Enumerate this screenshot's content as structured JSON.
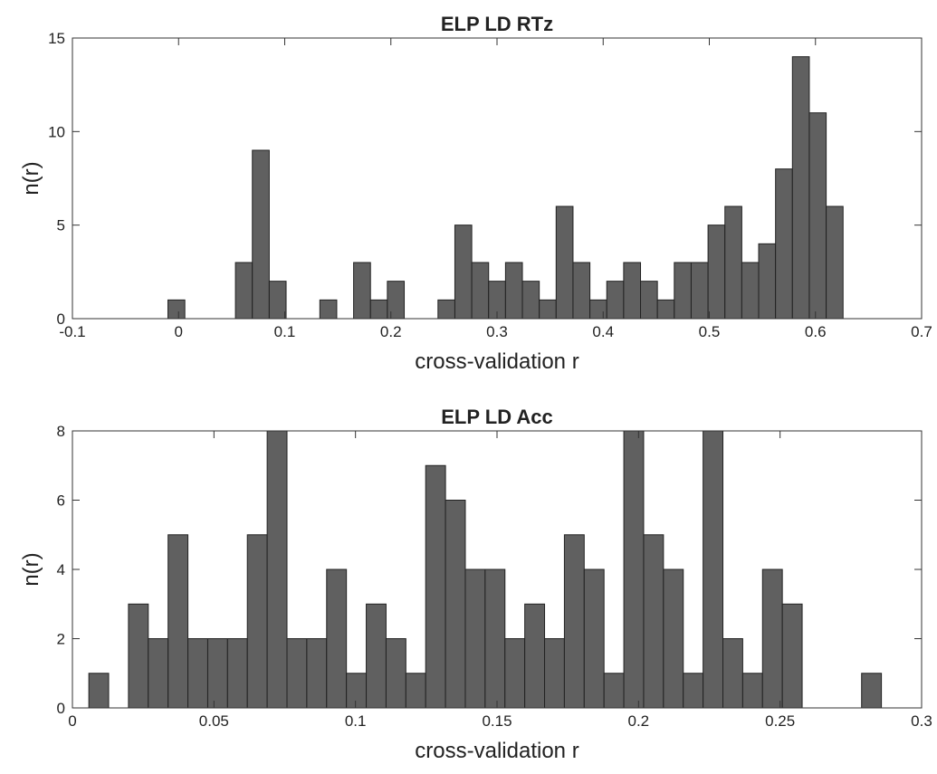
{
  "chart_data": [
    {
      "type": "histogram",
      "title": "ELP LD RTz",
      "xlabel": "cross-validation r",
      "ylabel": "n(r)",
      "color": "#606060",
      "bins": [
        -0.01,
        0.0059,
        0.0218,
        0.0377,
        0.0536,
        0.0695,
        0.0854,
        0.1013,
        0.1172,
        0.1331,
        0.149,
        0.1649,
        0.1808,
        0.1967,
        0.2126,
        0.2285,
        0.2444,
        0.2603,
        0.2762,
        0.2921,
        0.308,
        0.3239,
        0.3398,
        0.3557,
        0.3716,
        0.3875,
        0.4034,
        0.4193,
        0.4352,
        0.4511,
        0.467,
        0.4829,
        0.4988,
        0.5147,
        0.5306,
        0.5465,
        0.5624,
        0.5783,
        0.5942,
        0.6101,
        0.626
      ],
      "values": [
        1,
        0,
        0,
        0,
        3,
        9,
        2,
        0,
        0,
        1,
        0,
        3,
        1,
        2,
        0,
        0,
        1,
        5,
        3,
        2,
        3,
        2,
        1,
        6,
        3,
        1,
        2,
        3,
        2,
        1,
        3,
        3,
        5,
        6,
        3,
        4,
        8,
        14,
        11,
        6
      ],
      "xlim": [
        -0.1,
        0.7
      ],
      "xticks": [
        -0.1,
        0,
        0.1,
        0.2,
        0.3,
        0.4,
        0.5,
        0.6,
        0.7
      ],
      "ylim": [
        0,
        15
      ],
      "yticks": [
        0,
        5,
        10,
        15
      ]
    },
    {
      "type": "histogram",
      "title": "ELP LD Acc",
      "xlabel": "cross-validation r",
      "ylabel": "n(r)",
      "color": "#606060",
      "bins": [
        0.0058,
        0.0128,
        0.0198,
        0.0268,
        0.0338,
        0.0408,
        0.0478,
        0.0548,
        0.0618,
        0.0688,
        0.0758,
        0.0828,
        0.0898,
        0.0968,
        0.1038,
        0.1108,
        0.1178,
        0.1248,
        0.1318,
        0.1388,
        0.1458,
        0.1528,
        0.1598,
        0.1668,
        0.1738,
        0.1808,
        0.1878,
        0.1948,
        0.2018,
        0.2088,
        0.2158,
        0.2228,
        0.2298,
        0.2368,
        0.2438,
        0.2508,
        0.2578,
        0.2648,
        0.2718,
        0.2788,
        0.2858
      ],
      "values": [
        1,
        0,
        3,
        2,
        5,
        2,
        2,
        2,
        5,
        8,
        2,
        2,
        4,
        1,
        3,
        2,
        1,
        7,
        6,
        4,
        4,
        2,
        3,
        2,
        5,
        4,
        1,
        8,
        5,
        4,
        1,
        8,
        2,
        1,
        4,
        3,
        0,
        0,
        0,
        1
      ],
      "xlim": [
        0,
        0.3
      ],
      "xticks": [
        0,
        0.05,
        0.1,
        0.15,
        0.2,
        0.25,
        0.3
      ],
      "ylim": [
        0,
        8
      ],
      "yticks": [
        0,
        2,
        4,
        6,
        8
      ]
    }
  ]
}
